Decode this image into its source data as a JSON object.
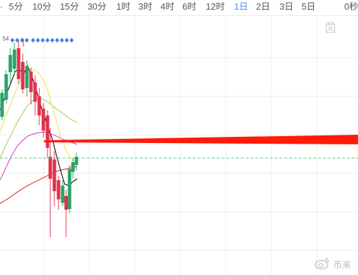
{
  "toolbar": {
    "timeframes": [
      {
        "label": "5分",
        "active": false
      },
      {
        "label": "10分",
        "active": false
      },
      {
        "label": "15分",
        "active": false
      },
      {
        "label": "30分",
        "active": false
      },
      {
        "label": "1时",
        "active": false
      },
      {
        "label": "3时",
        "active": false
      },
      {
        "label": "4时",
        "active": false
      },
      {
        "label": "6时",
        "active": false
      },
      {
        "label": "12时",
        "active": false
      },
      {
        "label": "1日",
        "active": true
      },
      {
        "label": "2日",
        "active": false
      },
      {
        "label": "3日",
        "active": false
      },
      {
        "label": "5日",
        "active": false
      }
    ],
    "right_label": "0秒"
  },
  "chart": {
    "top_marker_text": "54"
  },
  "colors": {
    "up": "#27a36a",
    "down": "#e0324b",
    "accent": "#4a90e2",
    "line_black": "#1a1a1a",
    "line_yellow": "#f2e35a",
    "line_green": "#9fd86b",
    "line_magenta": "#d94fd1",
    "line_red": "#e23a3a",
    "dashed_green": "#5bbf8a",
    "red_arrow": "#ff1a0a",
    "grid": "#ececec",
    "diamond": "#4a7fe0"
  },
  "icons": {
    "note": "note-icon",
    "watermark": "weibo-icon"
  },
  "watermark": {
    "text": "币来"
  }
}
